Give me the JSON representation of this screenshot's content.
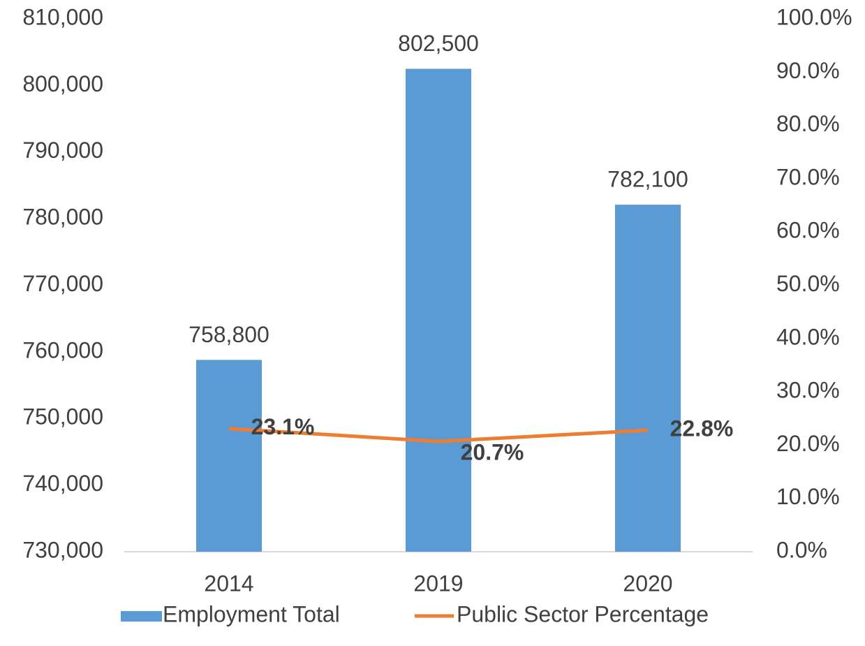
{
  "chart_data": {
    "type": "bar",
    "categories": [
      "2014",
      "2019",
      "2020"
    ],
    "series": [
      {
        "name": "Employment Total",
        "type": "bar",
        "color": "#5b9bd5",
        "values": [
          758800,
          802500,
          782100
        ],
        "value_labels": [
          "758,800",
          "802,500",
          "782,100"
        ]
      },
      {
        "name": "Public Sector Percentage",
        "type": "line",
        "axis": "y2",
        "color": "#ed7d31",
        "values": [
          23.1,
          20.7,
          22.8
        ],
        "value_labels": [
          "23.1%",
          "20.7%",
          "22.8%"
        ]
      }
    ],
    "ylim": [
      730000,
      810000
    ],
    "yticks": [
      {
        "value": 730000,
        "label": "730,000"
      },
      {
        "value": 740000,
        "label": "740,000"
      },
      {
        "value": 750000,
        "label": "750,000"
      },
      {
        "value": 760000,
        "label": "760,000"
      },
      {
        "value": 770000,
        "label": "770,000"
      },
      {
        "value": 780000,
        "label": "780,000"
      },
      {
        "value": 790000,
        "label": "790,000"
      },
      {
        "value": 800000,
        "label": "800,000"
      },
      {
        "value": 810000,
        "label": "810,000"
      }
    ],
    "y2lim": [
      0,
      100
    ],
    "y2ticks": [
      {
        "value": 0,
        "label": "0.0%"
      },
      {
        "value": 10,
        "label": "10.0%"
      },
      {
        "value": 20,
        "label": "20.0%"
      },
      {
        "value": 30,
        "label": "30.0%"
      },
      {
        "value": 40,
        "label": "40.0%"
      },
      {
        "value": 50,
        "label": "50.0%"
      },
      {
        "value": 60,
        "label": "60.0%"
      },
      {
        "value": 70,
        "label": "70.0%"
      },
      {
        "value": 80,
        "label": "80.0%"
      },
      {
        "value": 90,
        "label": "90.0%"
      },
      {
        "value": 100,
        "label": "100.0%"
      }
    ],
    "grid": false,
    "legend": "bottom"
  }
}
